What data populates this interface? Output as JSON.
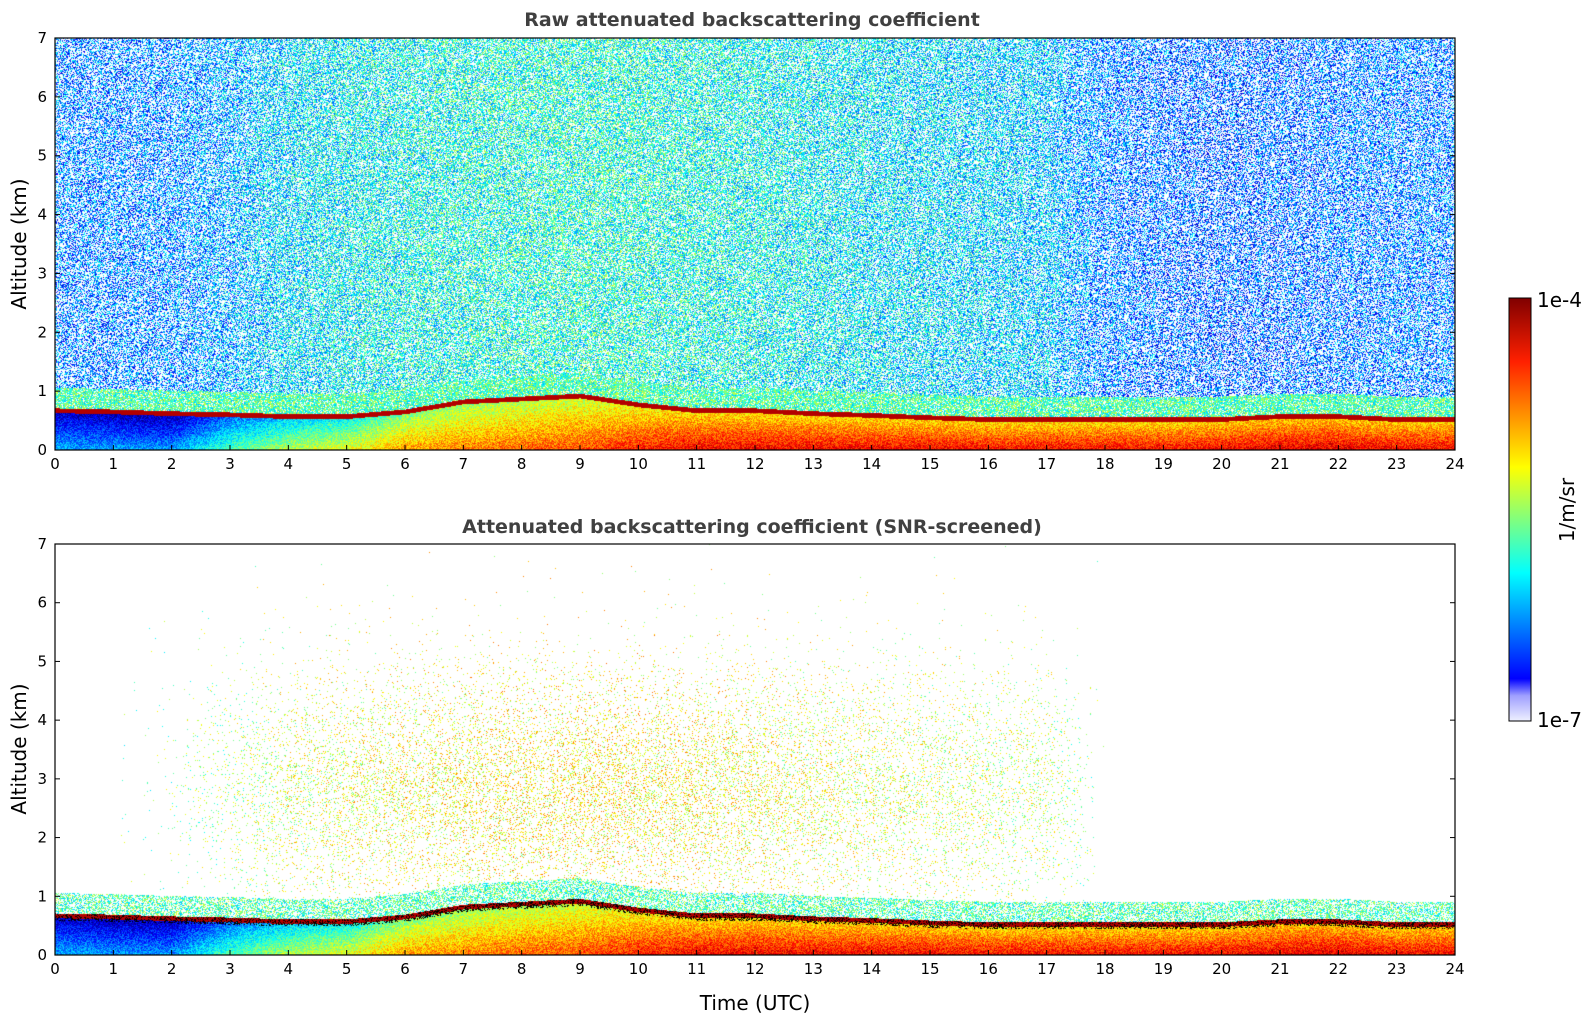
{
  "chart_data": [
    {
      "type": "heatmap",
      "title": "Raw attenuated backscattering coefficient",
      "xlabel": "",
      "ylabel": "Altitude (km)",
      "xlim": [
        0,
        24
      ],
      "ylim": [
        0,
        7
      ],
      "x_ticks": [
        "0",
        "1",
        "2",
        "3",
        "4",
        "5",
        "6",
        "7",
        "8",
        "9",
        "10",
        "11",
        "12",
        "13",
        "14",
        "15",
        "16",
        "17",
        "18",
        "19",
        "20",
        "21",
        "22",
        "23",
        "24"
      ],
      "y_ticks": [
        "0",
        "1",
        "2",
        "3",
        "4",
        "5",
        "6",
        "7"
      ],
      "screened": false,
      "background_noise_level": [
        0.3,
        0.3,
        0.32,
        0.4,
        0.5,
        0.55,
        0.58,
        0.6,
        0.62,
        0.63,
        0.62,
        0.6,
        0.58,
        0.55,
        0.52,
        0.5,
        0.48,
        0.45,
        0.3,
        0.25,
        0.22,
        0.25,
        0.28,
        0.3,
        0.3
      ],
      "surface_layer_top_km": [
        0.7,
        0.68,
        0.65,
        0.63,
        0.6,
        0.6,
        0.68,
        0.85,
        0.9,
        0.95,
        0.8,
        0.7,
        0.7,
        0.65,
        0.62,
        0.58,
        0.55,
        0.55,
        0.55,
        0.55,
        0.55,
        0.6,
        0.6,
        0.55,
        0.55
      ],
      "surface_layer_intensity": [
        0.3,
        0.28,
        0.28,
        0.45,
        0.55,
        0.6,
        0.72,
        0.75,
        0.78,
        0.8,
        0.85,
        0.88,
        0.88,
        0.88,
        0.88,
        0.88,
        0.87,
        0.87,
        0.87,
        0.87,
        0.88,
        0.9,
        0.9,
        0.88,
        0.88
      ]
    },
    {
      "type": "heatmap",
      "title": "Attenuated backscattering coefficient (SNR-screened)",
      "xlabel": "Time (UTC)",
      "ylabel": "Altitude (km)",
      "xlim": [
        0,
        24
      ],
      "ylim": [
        0,
        7
      ],
      "x_ticks": [
        "0",
        "1",
        "2",
        "3",
        "4",
        "5",
        "6",
        "7",
        "8",
        "9",
        "10",
        "11",
        "12",
        "13",
        "14",
        "15",
        "16",
        "17",
        "18",
        "19",
        "20",
        "21",
        "22",
        "23",
        "24"
      ],
      "y_ticks": [
        "0",
        "1",
        "2",
        "3",
        "4",
        "5",
        "6",
        "7"
      ],
      "screened": true,
      "background_noise_level": [
        0.3,
        0.3,
        0.32,
        0.4,
        0.5,
        0.55,
        0.58,
        0.6,
        0.62,
        0.63,
        0.62,
        0.6,
        0.58,
        0.55,
        0.52,
        0.5,
        0.48,
        0.45,
        0.3,
        0.25,
        0.22,
        0.25,
        0.28,
        0.3,
        0.3
      ],
      "surface_layer_top_km": [
        0.7,
        0.68,
        0.65,
        0.63,
        0.6,
        0.6,
        0.68,
        0.85,
        0.9,
        0.95,
        0.8,
        0.7,
        0.7,
        0.65,
        0.62,
        0.58,
        0.55,
        0.55,
        0.55,
        0.55,
        0.55,
        0.6,
        0.6,
        0.55,
        0.55
      ],
      "surface_layer_intensity": [
        0.3,
        0.28,
        0.28,
        0.45,
        0.55,
        0.6,
        0.72,
        0.75,
        0.78,
        0.8,
        0.85,
        0.88,
        0.88,
        0.88,
        0.88,
        0.88,
        0.87,
        0.87,
        0.87,
        0.87,
        0.88,
        0.9,
        0.9,
        0.88,
        0.88
      ]
    }
  ],
  "colorbar": {
    "max_label": "1e-4",
    "min_label": "1e-7",
    "unit_label": "1/m/sr",
    "colormap": "jet"
  }
}
